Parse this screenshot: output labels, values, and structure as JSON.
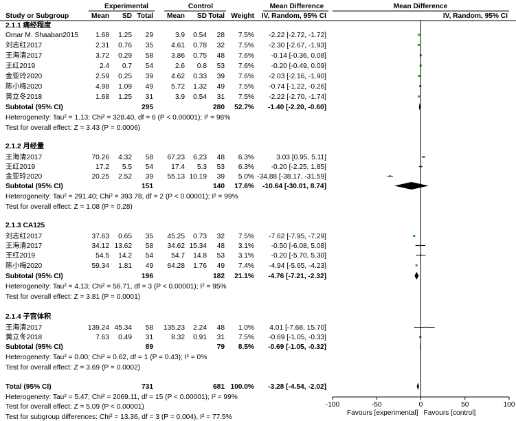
{
  "chart_data": {
    "type": "forest",
    "header": {
      "experimental": "Experimental",
      "control": "Control",
      "mean_difference": "Mean Difference",
      "mean_difference_plot": "Mean Difference",
      "study": "Study or Subgroup",
      "mean": "Mean",
      "sd": "SD",
      "total": "Total",
      "weight": "Weight",
      "method": "IV, Random, 95% CI",
      "method_plot": "IV, Random, 95% CI"
    },
    "axis": {
      "min": -100,
      "max": 100,
      "ticks": [
        -100,
        -50,
        0,
        50,
        100
      ],
      "tick_labels": [
        "-100",
        "-50",
        "0",
        "50",
        "100"
      ],
      "left_label": "Favours [experimental]",
      "right_label": "Favours [control]"
    },
    "subgroups": [
      {
        "title": "2.1.1 痛经程度",
        "studies": [
          {
            "name": "Omar M. Shaaban2015",
            "e_mean": "1.68",
            "e_sd": "1.25",
            "e_n": "29",
            "c_mean": "3.9",
            "c_sd": "0.54",
            "c_n": "28",
            "weight": "7.5%",
            "ci_text": "-2.22 [-2.72, -1.72]",
            "md": -2.22,
            "lo": -2.72,
            "hi": -1.72,
            "w": 7.5
          },
          {
            "name": "刘志红2017",
            "e_mean": "2.31",
            "e_sd": "0.76",
            "e_n": "35",
            "c_mean": "4.61",
            "c_sd": "0.78",
            "c_n": "32",
            "weight": "7.5%",
            "ci_text": "-2.30 [-2.67, -1.93]",
            "md": -2.3,
            "lo": -2.67,
            "hi": -1.93,
            "w": 7.5
          },
          {
            "name": "王海清2017",
            "e_mean": "3.72",
            "e_sd": "0.29",
            "e_n": "58",
            "c_mean": "3.86",
            "c_sd": "0.75",
            "c_n": "48",
            "weight": "7.6%",
            "ci_text": "-0.14 [-0.36, 0.08]",
            "md": -0.14,
            "lo": -0.36,
            "hi": 0.08,
            "w": 7.6
          },
          {
            "name": "王红2019",
            "e_mean": "2.4",
            "e_sd": "0.7",
            "e_n": "54",
            "c_mean": "2.6",
            "c_sd": "0.8",
            "c_n": "53",
            "weight": "7.6%",
            "ci_text": "-0.20 [-0.49, 0.09]",
            "md": -0.2,
            "lo": -0.49,
            "hi": 0.09,
            "w": 7.6
          },
          {
            "name": "金亚玲2020",
            "e_mean": "2.59",
            "e_sd": "0.25",
            "e_n": "39",
            "c_mean": "4.62",
            "c_sd": "0.33",
            "c_n": "39",
            "weight": "7.6%",
            "ci_text": "-2.03 [-2.16, -1.90]",
            "md": -2.03,
            "lo": -2.16,
            "hi": -1.9,
            "w": 7.6
          },
          {
            "name": "陈小梅2020",
            "e_mean": "4.98",
            "e_sd": "1.09",
            "e_n": "49",
            "c_mean": "5.72",
            "c_sd": "1.32",
            "c_n": "49",
            "weight": "7.5%",
            "ci_text": "-0.74 [-1.22, -0.26]",
            "md": -0.74,
            "lo": -1.22,
            "hi": -0.26,
            "w": 7.5
          },
          {
            "name": "黄立冬2018",
            "e_mean": "1.68",
            "e_sd": "1.25",
            "e_n": "31",
            "c_mean": "3.9",
            "c_sd": "0.54",
            "c_n": "31",
            "weight": "7.5%",
            "ci_text": "-2.22 [-2.70, -1.74]",
            "md": -2.22,
            "lo": -2.7,
            "hi": -1.74,
            "w": 7.5
          }
        ],
        "subtotal": {
          "label": "Subtotal (95% CI)",
          "e_n": "295",
          "c_n": "280",
          "weight": "52.7%",
          "ci_text": "-1.40 [-2.20, -0.60]",
          "md": -1.4,
          "lo": -2.2,
          "hi": -0.6
        },
        "heterogeneity": "Heterogeneity: Tau² = 1.13; Chi² = 328.40, df = 6 (P < 0.00001); I² = 98%",
        "overall": "Test for overall effect: Z = 3.43 (P = 0.0006)"
      },
      {
        "title": "2.1.2 月经量",
        "studies": [
          {
            "name": "王海清2017",
            "e_mean": "70.26",
            "e_sd": "4.32",
            "e_n": "58",
            "c_mean": "67.23",
            "c_sd": "6.23",
            "c_n": "48",
            "weight": "6.3%",
            "ci_text": "3.03 [0.95, 5.11]",
            "md": 3.03,
            "lo": 0.95,
            "hi": 5.11,
            "w": 6.3
          },
          {
            "name": "王红2019",
            "e_mean": "17.2",
            "e_sd": "5.5",
            "e_n": "54",
            "c_mean": "17.4",
            "c_sd": "5.3",
            "c_n": "53",
            "weight": "6.3%",
            "ci_text": "-0.20 [-2.25, 1.85]",
            "md": -0.2,
            "lo": -2.25,
            "hi": 1.85,
            "w": 6.3
          },
          {
            "name": "金亚玲2020",
            "e_mean": "20.25",
            "e_sd": "2.52",
            "e_n": "39",
            "c_mean": "55.13",
            "c_sd": "10.19",
            "c_n": "39",
            "weight": "5.0%",
            "ci_text": "-34.88 [-38.17, -31.59]",
            "md": -34.88,
            "lo": -38.17,
            "hi": -31.59,
            "w": 5.0
          }
        ],
        "subtotal": {
          "label": "Subtotal (95% CI)",
          "e_n": "151",
          "c_n": "140",
          "weight": "17.6%",
          "ci_text": "-10.64 [-30.01, 8.74]",
          "md": -10.64,
          "lo": -30.01,
          "hi": 8.74
        },
        "heterogeneity": "Heterogeneity: Tau² = 291.40; Chi² = 393.78, df = 2 (P < 0.00001); I² = 99%",
        "overall": "Test for overall effect: Z = 1.08 (P = 0.28)"
      },
      {
        "title": "2.1.3 CA125",
        "studies": [
          {
            "name": "刘志红2017",
            "e_mean": "37.63",
            "e_sd": "0.65",
            "e_n": "35",
            "c_mean": "45.25",
            "c_sd": "0.73",
            "c_n": "32",
            "weight": "7.5%",
            "ci_text": "-7.62 [-7.95, -7.29]",
            "md": -7.62,
            "lo": -7.95,
            "hi": -7.29,
            "w": 7.5
          },
          {
            "name": "王海清2017",
            "e_mean": "34.12",
            "e_sd": "13.62",
            "e_n": "58",
            "c_mean": "34.62",
            "c_sd": "15.34",
            "c_n": "48",
            "weight": "3.1%",
            "ci_text": "-0.50 [-6.08, 5.08]",
            "md": -0.5,
            "lo": -6.08,
            "hi": 5.08,
            "w": 3.1
          },
          {
            "name": "王红2019",
            "e_mean": "54.5",
            "e_sd": "14.2",
            "e_n": "54",
            "c_mean": "54.7",
            "c_sd": "14.8",
            "c_n": "53",
            "weight": "3.1%",
            "ci_text": "-0.20 [-5.70, 5.30]",
            "md": -0.2,
            "lo": -5.7,
            "hi": 5.3,
            "w": 3.1
          },
          {
            "name": "陈小梅2020",
            "e_mean": "59.34",
            "e_sd": "1.81",
            "e_n": "49",
            "c_mean": "64.28",
            "c_sd": "1.76",
            "c_n": "49",
            "weight": "7.4%",
            "ci_text": "-4.94 [-5.65, -4.23]",
            "md": -4.94,
            "lo": -5.65,
            "hi": -4.23,
            "w": 7.4
          }
        ],
        "subtotal": {
          "label": "Subtotal (95% CI)",
          "e_n": "196",
          "c_n": "182",
          "weight": "21.1%",
          "ci_text": "-4.76 [-7.21, -2.32]",
          "md": -4.76,
          "lo": -7.21,
          "hi": -2.32
        },
        "heterogeneity": "Heterogeneity: Tau² = 4.13; Chi² = 56.71, df = 3 (P < 0.00001); I² = 95%",
        "overall": "Test for overall effect: Z = 3.81 (P = 0.0001)"
      },
      {
        "title": "2.1.4 子宫体积",
        "studies": [
          {
            "name": "王海清2017",
            "e_mean": "139.24",
            "e_sd": "45.34",
            "e_n": "58",
            "c_mean": "135.23",
            "c_sd": "2.24",
            "c_n": "48",
            "weight": "1.0%",
            "ci_text": "4.01 [-7.68, 15.70]",
            "md": 4.01,
            "lo": -7.68,
            "hi": 15.7,
            "w": 1.0
          },
          {
            "name": "黄立冬2018",
            "e_mean": "7.63",
            "e_sd": "0.49",
            "e_n": "31",
            "c_mean": "8.32",
            "c_sd": "0.91",
            "c_n": "31",
            "weight": "7.5%",
            "ci_text": "-0.69 [-1.05, -0.33]",
            "md": -0.69,
            "lo": -1.05,
            "hi": -0.33,
            "w": 7.5
          }
        ],
        "subtotal": {
          "label": "Subtotal (95% CI)",
          "e_n": "89",
          "c_n": "79",
          "weight": "8.5%",
          "ci_text": "-0.69 [-1.05, -0.32]",
          "md": -0.69,
          "lo": -1.05,
          "hi": -0.32
        },
        "heterogeneity": "Heterogeneity: Tau² = 0.00; Chi² = 0.62, df = 1 (P = 0.43); I² = 0%",
        "overall": "Test for overall effect: Z = 3.69 (P = 0.0002)"
      }
    ],
    "total": {
      "label": "Total (95% CI)",
      "e_n": "731",
      "c_n": "681",
      "weight": "100.0%",
      "ci_text": "-3.28 [-4.54, -2.02]",
      "md": -3.28,
      "lo": -4.54,
      "hi": -2.02
    },
    "total_heterogeneity": "Heterogeneity: Tau² = 5.47; Chi² = 2069.11, df = 15 (P < 0.00001); I² = 99%",
    "total_overall": "Test for overall effect: Z = 5.09 (P < 0.00001)",
    "subgroup_differences": "Test for subgroup differences: Chi² = 13.36, df = 3 (P = 0.004), I² = 77.5%"
  },
  "colors": {
    "study_marker": "#22aa22",
    "diamond": "#000000",
    "line": "#000000",
    "subtotal_diamond_grey": "#888888"
  }
}
